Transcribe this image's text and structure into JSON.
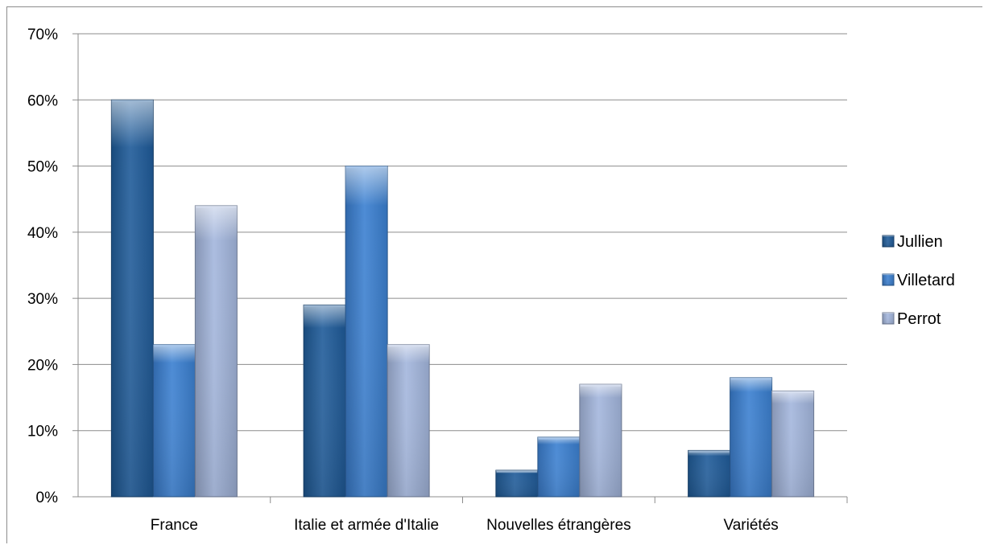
{
  "chart_data": {
    "type": "bar",
    "categories": [
      "France",
      "Italie et armée d'Italie",
      "Nouvelles étrangères",
      "Variétés"
    ],
    "series": [
      {
        "name": "Jullien",
        "values": [
          60,
          29,
          4,
          7
        ],
        "color": "#1f5b99"
      },
      {
        "name": "Villetard",
        "values": [
          23,
          50,
          9,
          18
        ],
        "color": "#3a7fd0"
      },
      {
        "name": "Perrot",
        "values": [
          44,
          23,
          17,
          16
        ],
        "color": "#a3b6dc"
      }
    ],
    "y_tick_labels": [
      "0%",
      "10%",
      "20%",
      "30%",
      "40%",
      "50%",
      "60%",
      "70%"
    ],
    "ylim": [
      0,
      70
    ],
    "grid": true,
    "legend_position": "right"
  }
}
